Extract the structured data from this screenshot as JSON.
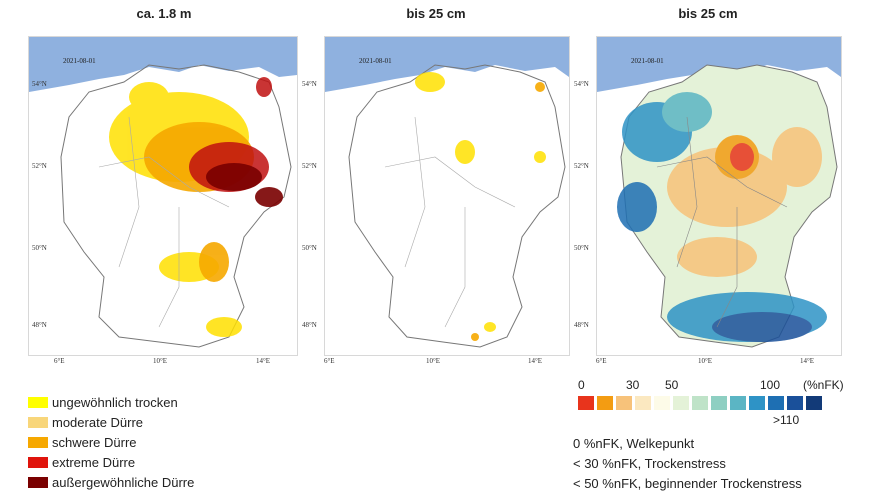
{
  "panels": [
    {
      "title": "ca. 1.8 m",
      "date": "2021-08-01"
    },
    {
      "title": "bis 25 cm",
      "date": "2021-08-01"
    },
    {
      "title": "bis 25 cm",
      "date": "2021-08-01"
    }
  ],
  "lat_labels": [
    "54°N",
    "52°N",
    "50°N",
    "48°N"
  ],
  "lon_labels": [
    "6°E",
    "10°E",
    "14°E"
  ],
  "drought_legend": [
    {
      "label": "ungewöhnlich trocken",
      "color": "#ffff00"
    },
    {
      "label": "moderate Dürre",
      "color": "#f8d67a"
    },
    {
      "label": "schwere Dürre",
      "color": "#f6a800"
    },
    {
      "label": "extreme Dürre",
      "color": "#e0140c"
    },
    {
      "label": "außergewöhnliche Dürre",
      "color": "#7a0000"
    }
  ],
  "nfk_scale": {
    "labels": {
      "zero": "0",
      "thirty": "30",
      "fifty": "50",
      "hundred": "100",
      "unit": "(%nFK)",
      "max": ">110"
    },
    "colors": [
      "#e8341c",
      "#f39c12",
      "#f7c27a",
      "#fbe8c0",
      "#fdfbe8",
      "#e4f2d8",
      "#bfe3c8",
      "#8ecfc2",
      "#5bb5c4",
      "#2e93c6",
      "#1e6fb3",
      "#1a509a",
      "#123a78"
    ]
  },
  "notes": [
    "0 %nFK, Welkepunkt",
    "< 30 %nFK, Trockenstress",
    "< 50 %nFK, beginnender Trockenstress"
  ]
}
